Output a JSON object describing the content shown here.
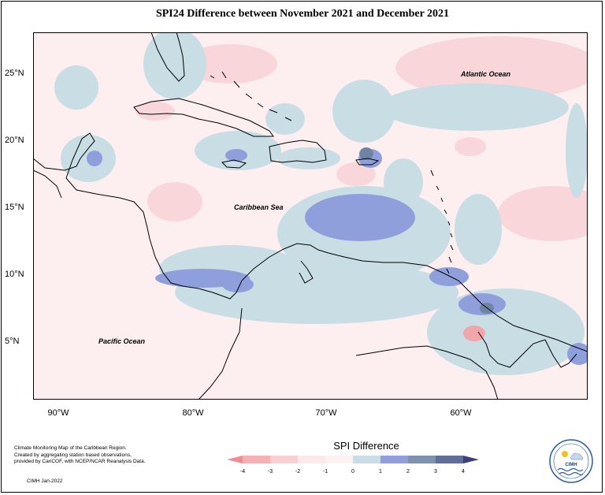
{
  "title": "SPI24 Difference between November 2021 and December 2021",
  "map_labels": {
    "atlantic": "Atlantic Ocean",
    "caribbean": "Caribbean Sea",
    "pacific": "Pacific Ocean"
  },
  "lat_labels": [
    "25°N",
    "20°N",
    "15°N",
    "10°N",
    "5°N"
  ],
  "lon_labels": [
    "90°W",
    "80°W",
    "70°W",
    "60°W"
  ],
  "credits": {
    "line1": "Climate Monitoring Map of the Caribbean Region.",
    "line2": "Created by aggregating station based observations,",
    "line3": "provided by CariCOF, with NCEP/NCAR Reanalysis Data.",
    "date": "CIMH  Jan-2022"
  },
  "legend": {
    "title": "SPI Difference",
    "ticks": [
      "-4",
      "-3",
      "-2",
      "-1",
      "0",
      "1",
      "2",
      "3",
      "4"
    ],
    "colors": [
      "#f28b8e",
      "#f4b0b2",
      "#f8d0d2",
      "#fce9ea",
      "#fdf1f1",
      "#c9dde6",
      "#8f9fdc",
      "#7d93ad",
      "#5f6f95"
    ],
    "arrow_left_color": "#f28b8e",
    "arrow_right_color": "#3b3f80"
  },
  "logo": {
    "text": "CIMH"
  }
}
